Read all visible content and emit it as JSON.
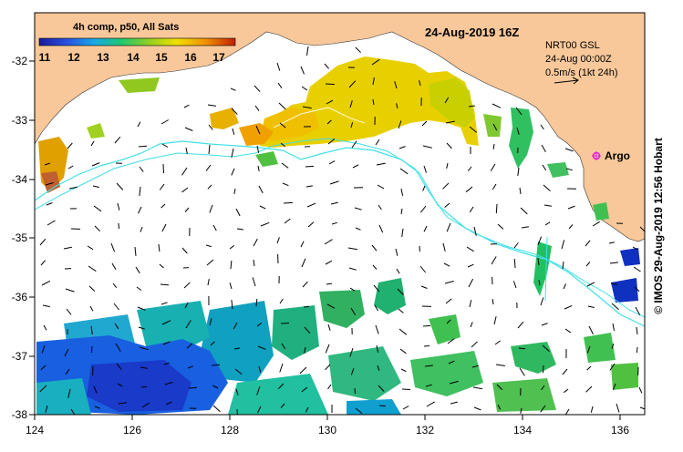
{
  "map": {
    "title": "4h comp, p50, All Sats",
    "date": "24-Aug-2019 16Z",
    "current_source": "NRT00 GSL",
    "current_time": "24-Aug 00:00Z",
    "arrow_scale": "0.5m/s (1kt 24h)",
    "argo_label": "Argo",
    "credit": "© IMOS 29-Aug-2019 12:56 Hobart",
    "colorbar": {
      "labels": [
        "11",
        "12",
        "13",
        "14",
        "15",
        "16",
        "17"
      ],
      "min": 10.5,
      "max": 17.5
    },
    "lon_ticks": [
      "124",
      "126",
      "128",
      "130",
      "132",
      "134",
      "136"
    ],
    "lat_ticks": [
      "-32",
      "-33",
      "-34",
      "-35",
      "-36",
      "-37",
      "-38"
    ],
    "lon_range": [
      124,
      136.5
    ],
    "lat_range": [
      -31.5,
      -38.1
    ],
    "colors": {
      "land": "#f8c89a",
      "ocean": "#ffffff",
      "contour": "#3fe0e6",
      "argo": "#e020e0"
    },
    "argo_float": {
      "lon": 135.5,
      "lat": -33.6
    }
  }
}
